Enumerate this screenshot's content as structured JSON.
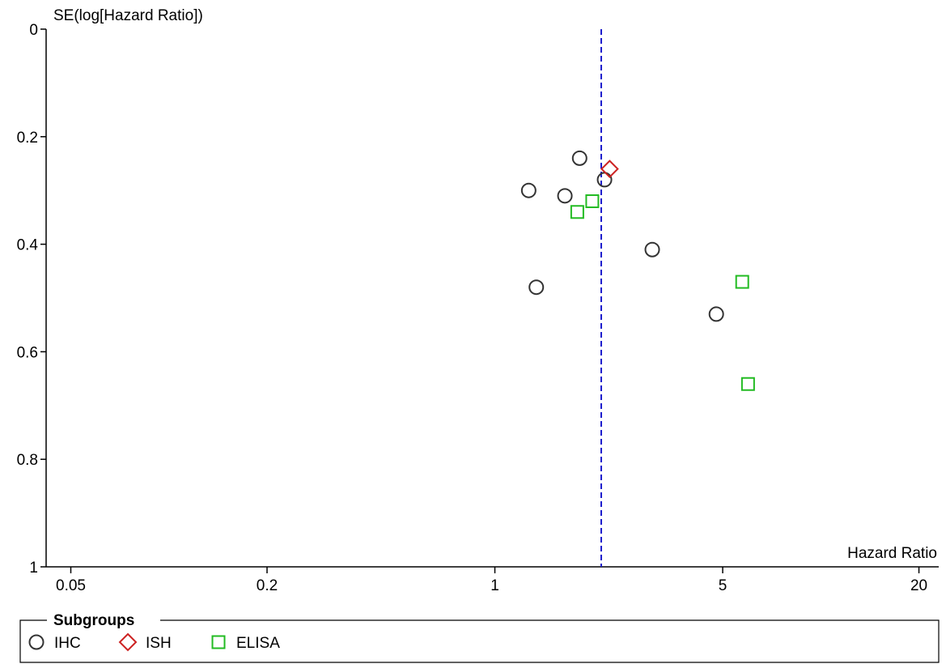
{
  "chart_data": {
    "type": "scatter",
    "subtype": "funnel-plot",
    "x_scale": "log",
    "y_reversed": true,
    "xlabel": "Hazard Ratio",
    "ylabel": "SE(log[Hazard Ratio])",
    "xlim": [
      0.042,
      23
    ],
    "ylim": [
      0,
      1
    ],
    "x_ticks": [
      {
        "value": 0.05,
        "label": "0.05"
      },
      {
        "value": 0.2,
        "label": "0.2"
      },
      {
        "value": 1,
        "label": "1"
      },
      {
        "value": 5,
        "label": "5"
      },
      {
        "value": 20,
        "label": "20"
      }
    ],
    "y_ticks": [
      {
        "value": 0,
        "label": "0"
      },
      {
        "value": 0.2,
        "label": "0.2"
      },
      {
        "value": 0.4,
        "label": "0.4"
      },
      {
        "value": 0.6,
        "label": "0.6"
      },
      {
        "value": 0.8,
        "label": "0.8"
      },
      {
        "value": 1,
        "label": "1"
      }
    ],
    "reference_line": {
      "x": 2.12,
      "style": "dashed",
      "color": "#1a1acc"
    },
    "grid": false,
    "legend": {
      "title": "Subgroups",
      "position": "bottom",
      "entries": [
        {
          "name": "IHC",
          "marker": "circle",
          "color": "#333333"
        },
        {
          "name": "ISH",
          "marker": "diamond",
          "color": "#cc2222"
        },
        {
          "name": "ELISA",
          "marker": "square",
          "color": "#22bb22"
        }
      ]
    },
    "series": [
      {
        "name": "IHC",
        "marker": "circle",
        "color": "#333333",
        "points": [
          {
            "x": 1.82,
            "y": 0.24
          },
          {
            "x": 2.17,
            "y": 0.28
          },
          {
            "x": 1.27,
            "y": 0.3
          },
          {
            "x": 1.64,
            "y": 0.31
          },
          {
            "x": 3.04,
            "y": 0.41
          },
          {
            "x": 1.34,
            "y": 0.48
          },
          {
            "x": 4.78,
            "y": 0.53
          }
        ]
      },
      {
        "name": "ISH",
        "marker": "diamond",
        "color": "#cc2222",
        "points": [
          {
            "x": 2.25,
            "y": 0.26
          }
        ]
      },
      {
        "name": "ELISA",
        "marker": "square",
        "color": "#22bb22",
        "points": [
          {
            "x": 1.99,
            "y": 0.32
          },
          {
            "x": 1.79,
            "y": 0.34
          },
          {
            "x": 5.74,
            "y": 0.47
          },
          {
            "x": 5.98,
            "y": 0.66
          }
        ]
      }
    ]
  }
}
